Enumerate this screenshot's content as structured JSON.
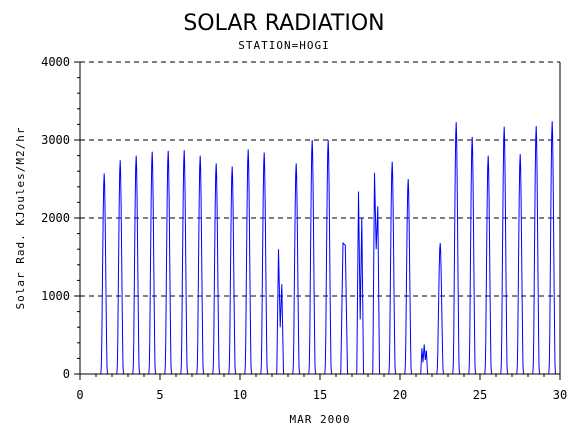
{
  "chart_data": {
    "type": "line",
    "title": "SOLAR RADIATION",
    "subtitle": "STATION=HOGI",
    "xlabel": "MAR 2000",
    "ylabel": "Solar Rad. KJoules/M2/hr",
    "xlim": [
      0,
      30
    ],
    "ylim": [
      0,
      4000
    ],
    "x_ticks": [
      0,
      5,
      10,
      15,
      20,
      25,
      30
    ],
    "y_ticks": [
      0,
      1000,
      2000,
      3000,
      4000
    ],
    "grid": "horizontal dashed",
    "series": [
      {
        "color": "#0000ff",
        "daily_peaks": [
          {
            "day": 1,
            "peak": 2570
          },
          {
            "day": 2,
            "peak": 2740
          },
          {
            "day": 3,
            "peak": 2800
          },
          {
            "day": 4,
            "peak": 2850
          },
          {
            "day": 5,
            "peak": 2860
          },
          {
            "day": 6,
            "peak": 2870
          },
          {
            "day": 7,
            "peak": 2800
          },
          {
            "day": 8,
            "peak": 2700
          },
          {
            "day": 9,
            "peak": 2660
          },
          {
            "day": 10,
            "peak": 2880
          },
          {
            "day": 11,
            "peak": 2840
          },
          {
            "day": 12,
            "peak": 1600,
            "pattern": [
              1600,
              600,
              1150
            ]
          },
          {
            "day": 13,
            "peak": 2700
          },
          {
            "day": 14,
            "peak": 3000
          },
          {
            "day": 15,
            "peak": 3000
          },
          {
            "day": 16,
            "peak": 1680,
            "pattern": [
              1680,
              1650
            ]
          },
          {
            "day": 17,
            "peak": 2340,
            "pattern": [
              2340,
              700,
              2000
            ]
          },
          {
            "day": 18,
            "peak": 2580,
            "pattern": [
              2580,
              1600,
              2150
            ]
          },
          {
            "day": 19,
            "peak": 2720
          },
          {
            "day": 20,
            "peak": 2500
          },
          {
            "day": 21,
            "peak": 380,
            "pattern": [
              330,
              150,
              380,
              180,
              300
            ]
          },
          {
            "day": 22,
            "peak": 1680
          },
          {
            "day": 23,
            "peak": 3230
          },
          {
            "day": 24,
            "peak": 3040
          },
          {
            "day": 25,
            "peak": 2800
          },
          {
            "day": 26,
            "peak": 3170
          },
          {
            "day": 27,
            "peak": 2820
          },
          {
            "day": 28,
            "peak": 3180
          },
          {
            "day": 29,
            "peak": 3240
          }
        ]
      }
    ],
    "colors": {
      "line": "#0000ff",
      "axis": "#000000",
      "grid": "#000000"
    }
  }
}
